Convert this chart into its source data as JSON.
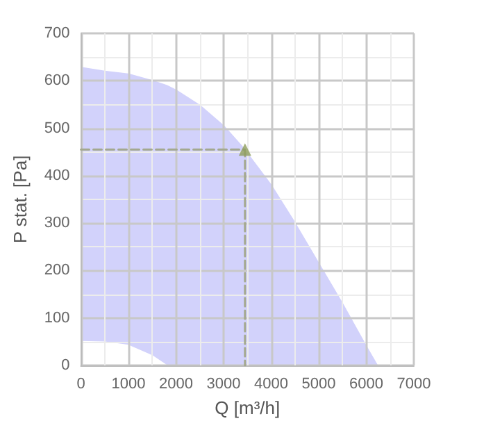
{
  "chart_data": {
    "type": "area",
    "xlabel": "Q [m³/h]",
    "ylabel": "P stat. [Pa]",
    "xlim": [
      0,
      7000
    ],
    "ylim": [
      0,
      700
    ],
    "xticks": [
      0,
      1000,
      2000,
      3000,
      4000,
      5000,
      6000,
      7000
    ],
    "yticks": [
      0,
      100,
      200,
      300,
      400,
      500,
      600,
      700
    ],
    "grid": true,
    "series": [
      {
        "type": "area",
        "color": "#d2d2fb",
        "x": [
          0,
          500,
          1000,
          1500,
          1800,
          2000,
          2500,
          3000,
          3400,
          4000,
          4500,
          5000,
          5500,
          6000,
          6230
        ],
        "values": [
          628,
          620,
          614,
          600,
          590,
          580,
          548,
          505,
          460,
          380,
          300,
          215,
          130,
          40,
          0
        ]
      },
      {
        "type": "area",
        "color": "#ffffff",
        "x": [
          0,
          500,
          1000,
          1500,
          1800
        ],
        "values": [
          50,
          49,
          42,
          20,
          0
        ]
      },
      {
        "type": "line",
        "color": "#a3a88f",
        "line_style": "dashed",
        "marker": "none",
        "x": [
          0,
          3450,
          3450
        ],
        "values": [
          455,
          455,
          0
        ]
      },
      {
        "type": "scatter",
        "color": "#8f9e5e",
        "marker": "triangle",
        "x": [
          3450
        ],
        "values": [
          455
        ]
      }
    ]
  }
}
